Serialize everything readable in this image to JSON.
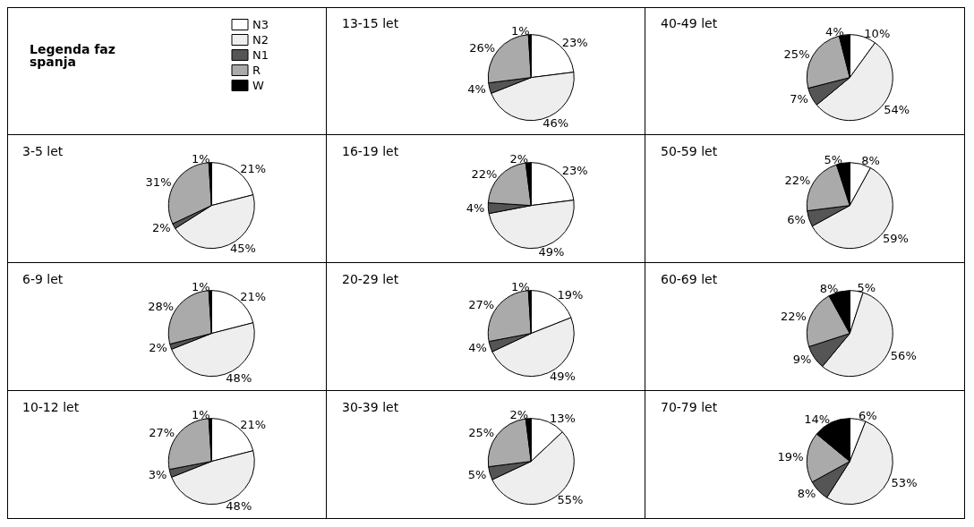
{
  "chart_data": [
    {
      "type": "pie",
      "title": "3-5 let",
      "legend": "top right",
      "legend_title": "Legenda faz spanja",
      "categories": [
        "N3",
        "N2",
        "N1",
        "R",
        "W"
      ],
      "values": [
        21,
        45,
        2,
        31,
        1
      ],
      "value_labels": [
        "21%",
        "45%",
        "2%",
        "31%",
        "1%"
      ],
      "colors": [
        "#ffffff",
        "#eeeeee",
        "#555555",
        "#aaaaaa",
        "#000000"
      ]
    },
    {
      "type": "pie",
      "title": "6-9 let",
      "categories": [
        null,
        null,
        null,
        null,
        null
      ],
      "values": [
        21,
        48,
        2,
        28,
        1
      ],
      "value_labels": [
        "21%",
        "48%",
        "2%",
        "28%",
        "1%"
      ],
      "colors": [
        "#ffffff",
        "#eeeeee",
        "#555555",
        "#aaaaaa",
        "#000000"
      ]
    },
    {
      "type": "pie",
      "title": "10-12 let",
      "categories": [
        null,
        null,
        null,
        null,
        null
      ],
      "values": [
        21,
        48,
        3,
        27,
        1
      ],
      "value_labels": [
        "21%",
        "48%",
        "3%",
        "27%",
        "1%"
      ],
      "colors": [
        "#ffffff",
        "#eeeeee",
        "#555555",
        "#aaaaaa",
        "#000000"
      ]
    },
    {
      "type": "pie",
      "title": "13-15 let",
      "categories": [
        null,
        null,
        null,
        null,
        null
      ],
      "values": [
        23,
        46,
        4,
        26,
        1
      ],
      "value_labels": [
        "23%",
        "46%",
        "4%",
        "26%",
        "1%"
      ],
      "colors": [
        "#ffffff",
        "#eeeeee",
        "#555555",
        "#aaaaaa",
        "#000000"
      ]
    },
    {
      "type": "pie",
      "title": "16-19 let",
      "categories": [
        null,
        null,
        null,
        null,
        null
      ],
      "values": [
        23,
        49,
        4,
        22,
        2
      ],
      "value_labels": [
        "23%",
        "49%",
        "4%",
        "22%",
        "2%"
      ],
      "colors": [
        "#ffffff",
        "#eeeeee",
        "#555555",
        "#aaaaaa",
        "#000000"
      ]
    },
    {
      "type": "pie",
      "title": "20-29 let",
      "categories": [
        null,
        null,
        null,
        null,
        null
      ],
      "values": [
        19,
        49,
        4,
        27,
        1
      ],
      "value_labels": [
        "19%",
        "49%",
        "4%",
        "27%",
        "1%"
      ],
      "colors": [
        "#ffffff",
        "#eeeeee",
        "#555555",
        "#aaaaaa",
        "#000000"
      ]
    },
    {
      "type": "pie",
      "title": "30-39 let",
      "categories": [
        null,
        null,
        null,
        null,
        null
      ],
      "values": [
        13,
        55,
        5,
        25,
        2
      ],
      "value_labels": [
        "13%",
        "55%",
        "5%",
        "25%",
        "2%"
      ],
      "colors": [
        "#ffffff",
        "#eeeeee",
        "#555555",
        "#aaaaaa",
        "#000000"
      ]
    },
    {
      "type": "pie",
      "title": "40-49 let",
      "categories": [
        null,
        null,
        null,
        null,
        null
      ],
      "values": [
        10,
        54,
        7,
        25,
        4
      ],
      "value_labels": [
        "10%",
        "54%",
        "7%",
        "25%",
        "4%"
      ],
      "colors": [
        "#ffffff",
        "#eeeeee",
        "#555555",
        "#aaaaaa",
        "#000000"
      ]
    },
    {
      "type": "pie",
      "title": "50-59 let",
      "categories": [
        null,
        null,
        null,
        null,
        null
      ],
      "values": [
        8,
        59,
        6,
        22,
        5
      ],
      "value_labels": [
        "8%",
        "59%",
        "6%",
        "22%",
        "5%"
      ],
      "colors": [
        "#ffffff",
        "#eeeeee",
        "#555555",
        "#aaaaaa",
        "#000000"
      ]
    },
    {
      "type": "pie",
      "title": "60-69 let",
      "categories": [
        null,
        null,
        null,
        null,
        null
      ],
      "values": [
        5,
        56,
        9,
        22,
        8
      ],
      "value_labels": [
        "5%",
        "56%",
        "9%",
        "22%",
        "8%"
      ],
      "colors": [
        "#ffffff",
        "#eeeeee",
        "#555555",
        "#aaaaaa",
        "#000000"
      ]
    },
    {
      "type": "pie",
      "title": "70-79 let",
      "categories": [
        null,
        null,
        null,
        null,
        null
      ],
      "values": [
        6,
        53,
        8,
        19,
        14
      ],
      "value_labels": [
        "6%",
        "53%",
        "8%",
        "19%",
        "14%"
      ],
      "colors": [
        "#ffffff",
        "#eeeeee",
        "#555555",
        "#aaaaaa",
        "#000000"
      ]
    }
  ]
}
